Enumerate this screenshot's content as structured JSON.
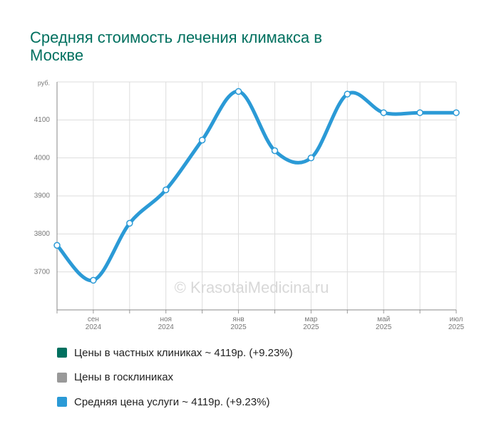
{
  "chart_data": {
    "type": "line",
    "title": "Средняя стоимость лечения климакса в Москве",
    "watermark": "© KrasotaiMedicina.ru",
    "categories": [
      null,
      "сен 2024",
      null,
      "ноя 2024",
      null,
      "янв 2025",
      null,
      "мар 2025",
      null,
      "май 2025",
      null,
      "июл 2025"
    ],
    "series": [
      {
        "name": "Цены в частных клиниках ~ 4119р. (+9.23%)",
        "color": "#00705f"
      },
      {
        "name": "Цены в госклиниках",
        "color": "#999999"
      },
      {
        "name": "Средняя цена услуги ~ 4119р. (+9.23%)",
        "color": "#2b9ad6",
        "values": [
          3770,
          3678,
          3828,
          3916,
          4047,
          4175,
          4019,
          4000,
          4168,
          4119,
          4119,
          4119
        ]
      }
    ],
    "ylim": [
      3600,
      4200
    ],
    "yticks": [
      3700,
      3800,
      3900,
      4000,
      4100,
      {
        "value": 4200,
        "label": "руб."
      }
    ],
    "grid": true
  }
}
